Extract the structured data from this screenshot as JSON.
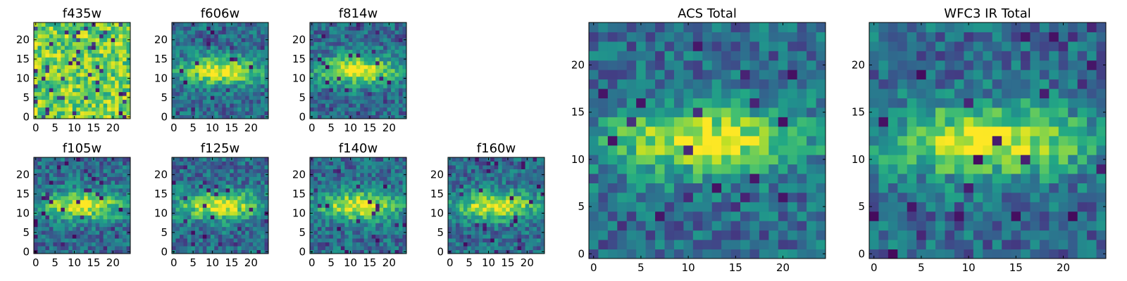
{
  "chart_data": [
    {
      "type": "heatmap",
      "title": "f435w",
      "grid_size": 25,
      "xlim": [
        -0.5,
        24.5
      ],
      "ylim": [
        -0.5,
        24.5
      ],
      "xticks": [
        0,
        5,
        10,
        15,
        20
      ],
      "yticks": [
        0,
        5,
        10,
        15,
        20
      ],
      "colormap": "viridis",
      "origin": "lower",
      "pattern": "noise",
      "values": []
    },
    {
      "type": "heatmap",
      "title": "f606w",
      "grid_size": 25,
      "xlim": [
        -0.5,
        24.5
      ],
      "ylim": [
        -0.5,
        24.5
      ],
      "xticks": [
        0,
        5,
        10,
        15,
        20
      ],
      "yticks": [
        0,
        5,
        10,
        15,
        20
      ],
      "colormap": "viridis",
      "origin": "lower",
      "pattern": "galaxy",
      "values": []
    },
    {
      "type": "heatmap",
      "title": "f814w",
      "grid_size": 25,
      "xlim": [
        -0.5,
        24.5
      ],
      "ylim": [
        -0.5,
        24.5
      ],
      "xticks": [
        0,
        5,
        10,
        15,
        20
      ],
      "yticks": [
        0,
        5,
        10,
        15,
        20
      ],
      "colormap": "viridis",
      "origin": "lower",
      "pattern": "galaxy",
      "values": []
    },
    {
      "type": "heatmap",
      "title": "f105w",
      "grid_size": 25,
      "xlim": [
        -0.5,
        24.5
      ],
      "ylim": [
        -0.5,
        24.5
      ],
      "xticks": [
        0,
        5,
        10,
        15,
        20
      ],
      "yticks": [
        0,
        5,
        10,
        15,
        20
      ],
      "colormap": "viridis",
      "origin": "lower",
      "pattern": "galaxy",
      "values": []
    },
    {
      "type": "heatmap",
      "title": "f125w",
      "grid_size": 25,
      "xlim": [
        -0.5,
        24.5
      ],
      "ylim": [
        -0.5,
        24.5
      ],
      "xticks": [
        0,
        5,
        10,
        15,
        20
      ],
      "yticks": [
        0,
        5,
        10,
        15,
        20
      ],
      "colormap": "viridis",
      "origin": "lower",
      "pattern": "galaxy",
      "values": []
    },
    {
      "type": "heatmap",
      "title": "f140w",
      "grid_size": 25,
      "xlim": [
        -0.5,
        24.5
      ],
      "ylim": [
        -0.5,
        24.5
      ],
      "xticks": [
        0,
        5,
        10,
        15,
        20
      ],
      "yticks": [
        0,
        5,
        10,
        15,
        20
      ],
      "colormap": "viridis",
      "origin": "lower",
      "pattern": "galaxy",
      "values": []
    },
    {
      "type": "heatmap",
      "title": "f160w",
      "grid_size": 25,
      "xlim": [
        -0.5,
        24.5
      ],
      "ylim": [
        -0.5,
        24.5
      ],
      "xticks": [
        0,
        5,
        10,
        15,
        20
      ],
      "yticks": [
        0,
        5,
        10,
        15,
        20
      ],
      "colormap": "viridis",
      "origin": "lower",
      "pattern": "galaxy",
      "values": []
    },
    {
      "type": "heatmap",
      "title": "ACS Total",
      "grid_size": 25,
      "xlim": [
        -0.5,
        24.5
      ],
      "ylim": [
        -0.5,
        24.5
      ],
      "xticks": [
        0,
        5,
        10,
        15,
        20
      ],
      "yticks": [
        0,
        5,
        10,
        15,
        20
      ],
      "colormap": "viridis",
      "origin": "lower",
      "pattern": "galaxy",
      "values": []
    },
    {
      "type": "heatmap",
      "title": "WFC3 IR Total",
      "grid_size": 25,
      "xlim": [
        -0.5,
        24.5
      ],
      "ylim": [
        -0.5,
        24.5
      ],
      "xticks": [
        0,
        5,
        10,
        15,
        20
      ],
      "yticks": [
        0,
        5,
        10,
        15,
        20
      ],
      "colormap": "viridis",
      "origin": "lower",
      "pattern": "galaxy",
      "values": []
    }
  ]
}
